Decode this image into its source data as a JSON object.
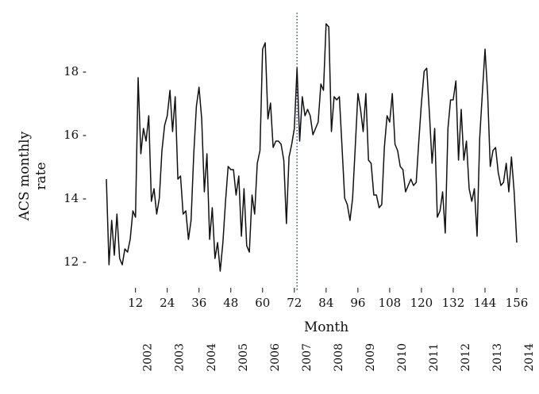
{
  "chart_data": {
    "type": "line",
    "xlabel": "Month",
    "ylabel_lines": [
      "ACS monthly",
      "rate"
    ],
    "xlim": [
      0,
      157
    ],
    "ylim": [
      11.5,
      19.8
    ],
    "x_ticks": [
      12,
      24,
      36,
      48,
      60,
      72,
      84,
      96,
      108,
      120,
      132,
      144,
      156
    ],
    "x_tick_labels": [
      "12",
      "24",
      "36",
      "48",
      "60",
      "72",
      "84",
      "96",
      "108",
      "120",
      "132",
      "144",
      "156"
    ],
    "y_ticks": [
      12,
      14,
      16,
      18
    ],
    "y_tick_labels": [
      "12 -",
      "14 -",
      "16 -",
      "18 -"
    ],
    "grid": false,
    "legend": "none",
    "reference_line": {
      "x": 73,
      "style": "dotted",
      "color": "#2a2a9a"
    },
    "year_labels": [
      {
        "label": "2002",
        "month": 18
      },
      {
        "label": "2003",
        "month": 30
      },
      {
        "label": "2004",
        "month": 42
      },
      {
        "label": "2005",
        "month": 54
      },
      {
        "label": "2006",
        "month": 66
      },
      {
        "label": "2007",
        "month": 78
      },
      {
        "label": "2008",
        "month": 90
      },
      {
        "label": "2009",
        "month": 102
      },
      {
        "label": "2010",
        "month": 114
      },
      {
        "label": "2011",
        "month": 126
      },
      {
        "label": "2012",
        "month": 138
      },
      {
        "label": "2013",
        "month": 150
      },
      {
        "label": "2014",
        "month": 162
      }
    ],
    "series": [
      {
        "color": "#111111",
        "x": [
          1,
          2,
          3,
          4,
          5,
          6,
          7,
          8,
          9,
          10,
          11,
          12,
          13,
          14,
          15,
          16,
          17,
          18,
          19,
          20,
          21,
          22,
          23,
          24,
          25,
          26,
          27,
          28,
          29,
          30,
          31,
          32,
          33,
          34,
          35,
          36,
          37,
          38,
          39,
          40,
          41,
          42,
          43,
          44,
          45,
          46,
          47,
          48,
          49,
          50,
          51,
          52,
          53,
          54,
          55,
          56,
          57,
          58,
          59,
          60,
          61,
          62,
          63,
          64,
          65,
          66,
          67,
          68,
          69,
          70,
          71,
          72,
          73,
          74,
          75,
          76,
          77,
          78,
          79,
          80,
          81,
          82,
          83,
          84,
          85,
          86,
          87,
          88,
          89,
          90,
          91,
          92,
          93,
          94,
          95,
          96,
          97,
          98,
          99,
          100,
          101,
          102,
          103,
          104,
          105,
          106,
          107,
          108,
          109,
          110,
          111,
          112,
          113,
          114,
          115,
          116,
          117,
          118,
          119,
          120,
          121,
          122,
          123,
          124,
          125,
          126,
          127,
          128,
          129,
          130,
          131,
          132,
          133,
          134,
          135,
          136,
          137,
          138,
          139,
          140,
          141,
          142,
          143,
          144,
          145,
          146,
          147,
          148,
          149,
          150,
          151,
          152,
          153,
          154,
          155,
          156
        ],
        "values": [
          14.6,
          11.9,
          13.3,
          12.2,
          13.5,
          12.1,
          11.9,
          12.4,
          12.3,
          12.7,
          13.6,
          13.4,
          17.8,
          15.4,
          16.2,
          15.8,
          16.6,
          13.9,
          14.3,
          13.5,
          14.0,
          15.5,
          16.3,
          16.6,
          17.4,
          16.1,
          17.2,
          14.6,
          14.7,
          13.5,
          13.6,
          12.7,
          13.3,
          15.4,
          16.9,
          17.5,
          16.5,
          14.2,
          15.4,
          12.7,
          13.7,
          12.1,
          12.6,
          11.7,
          12.6,
          13.9,
          15.0,
          14.9,
          14.9,
          14.1,
          14.7,
          12.8,
          14.3,
          12.5,
          12.3,
          14.1,
          13.5,
          15.1,
          15.5,
          18.7,
          18.9,
          16.5,
          17.0,
          15.6,
          15.8,
          15.8,
          15.7,
          15.2,
          13.2,
          15.3,
          15.7,
          16.2,
          18.1,
          15.8,
          17.2,
          16.6,
          16.8,
          16.6,
          16.0,
          16.2,
          16.4,
          17.6,
          17.4,
          19.5,
          19.4,
          16.1,
          17.2,
          17.1,
          17.2,
          15.6,
          14.0,
          13.8,
          13.3,
          14.0,
          15.6,
          17.3,
          16.8,
          16.1,
          17.3,
          15.2,
          15.1,
          14.1,
          14.1,
          13.7,
          13.8,
          15.6,
          16.6,
          16.4,
          17.3,
          15.7,
          15.5,
          15.0,
          14.9,
          14.2,
          14.4,
          14.6,
          14.4,
          14.5,
          15.8,
          17.0,
          18.0,
          18.1,
          16.7,
          15.1,
          16.2,
          13.4,
          13.6,
          14.2,
          12.9,
          16.2,
          17.1,
          17.1,
          17.7,
          15.2,
          16.8,
          15.2,
          15.8,
          14.3,
          13.9,
          14.3,
          12.8,
          15.9,
          17.3,
          18.7,
          17.3,
          15.0,
          15.5,
          15.6,
          14.8,
          14.4,
          14.5,
          15.1,
          14.2,
          15.3,
          14.2,
          12.6
        ]
      }
    ]
  }
}
